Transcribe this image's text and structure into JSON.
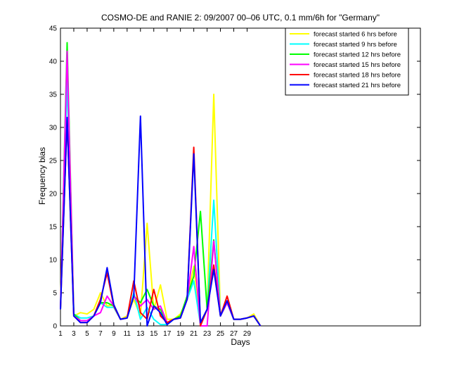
{
  "chart_data": {
    "type": "line",
    "title": "COSMO-DE and RANIE 2: 09/2007 00–06 UTC, 0.1 mm/6h for \"Germany\"",
    "xlabel": "Days",
    "ylabel": "Frequency bias",
    "xlim": [
      1,
      55
    ],
    "ylim": [
      0,
      45
    ],
    "xticks": [
      1,
      3,
      5,
      7,
      9,
      11,
      13,
      15,
      17,
      19,
      21,
      23,
      25,
      27,
      29
    ],
    "yticks": [
      0,
      5,
      10,
      15,
      20,
      25,
      30,
      35,
      40,
      45
    ],
    "grid": false,
    "legend_position": "top-right",
    "x": [
      1,
      2,
      3,
      4,
      5,
      6,
      7,
      8,
      9,
      10,
      11,
      12,
      13,
      14,
      15,
      16,
      17,
      18,
      19,
      20,
      21,
      22,
      23,
      24,
      25,
      26,
      27,
      28,
      29,
      30,
      31
    ],
    "series": [
      {
        "name": "forecast started 6 hrs before",
        "color": "#ffff00",
        "values": [
          2.5,
          39,
          1.5,
          2,
          1.8,
          2.5,
          5,
          3,
          3.2,
          1,
          1.5,
          4,
          1.5,
          15.5,
          2.5,
          6.2,
          1,
          1,
          1.8,
          4,
          9,
          0.5,
          2.5,
          35,
          1.5,
          3.5,
          1,
          1,
          1.2,
          1.8,
          0
        ]
      },
      {
        "name": "forecast started 9 hrs before",
        "color": "#00ffff",
        "values": [
          2.5,
          37,
          1.8,
          1.2,
          1.2,
          1.5,
          3.5,
          2.8,
          2.8,
          1,
          1.2,
          5,
          1,
          2.8,
          1,
          0.2,
          0.2,
          1,
          1.5,
          4,
          6.8,
          0.2,
          2.5,
          19,
          1.5,
          3.5,
          1,
          1,
          1.2,
          1.5,
          0
        ]
      },
      {
        "name": "forecast started 12 hrs before",
        "color": "#00ff00",
        "values": [
          2.5,
          42.8,
          1.8,
          0.8,
          0.8,
          1.5,
          3.5,
          3.5,
          3,
          1,
          1.2,
          4.5,
          3.5,
          5.5,
          3,
          2.5,
          0.5,
          1,
          1.5,
          4.5,
          7.5,
          17.3,
          2.5,
          13,
          1.5,
          3.5,
          1,
          1,
          1.2,
          1.5,
          0
        ]
      },
      {
        "name": "forecast started 15 hrs before",
        "color": "#ff00ff",
        "values": [
          2.5,
          41.5,
          1.5,
          0.8,
          0.8,
          1.5,
          2,
          4.5,
          3,
          1,
          1.2,
          4.5,
          3,
          4,
          2.5,
          3,
          0.5,
          1,
          1.2,
          4,
          12,
          0,
          0,
          12.8,
          1.5,
          3.5,
          1,
          1,
          1.2,
          1.5,
          0
        ]
      },
      {
        "name": "forecast started 18 hrs before",
        "color": "#ff0000",
        "values": [
          2.5,
          31.5,
          1.5,
          0.5,
          0.5,
          1.5,
          4,
          8,
          3,
          1,
          1.2,
          6.8,
          2,
          1,
          5.5,
          1.5,
          0.5,
          1,
          1.2,
          4,
          27,
          0,
          2.5,
          9.2,
          1.5,
          4.5,
          1,
          1,
          1.2,
          1.5,
          0
        ]
      },
      {
        "name": "forecast started 21 hrs before",
        "color": "#0000ff",
        "values": [
          2.5,
          31.5,
          1.5,
          0.5,
          0.5,
          1.5,
          3.5,
          8.8,
          3.2,
          1,
          1.2,
          4.5,
          31.7,
          0,
          3,
          2,
          0.2,
          1,
          1.2,
          4,
          26,
          0.5,
          2.5,
          8.5,
          1.5,
          3.8,
          1,
          1,
          1.2,
          1.5,
          0
        ]
      }
    ]
  }
}
